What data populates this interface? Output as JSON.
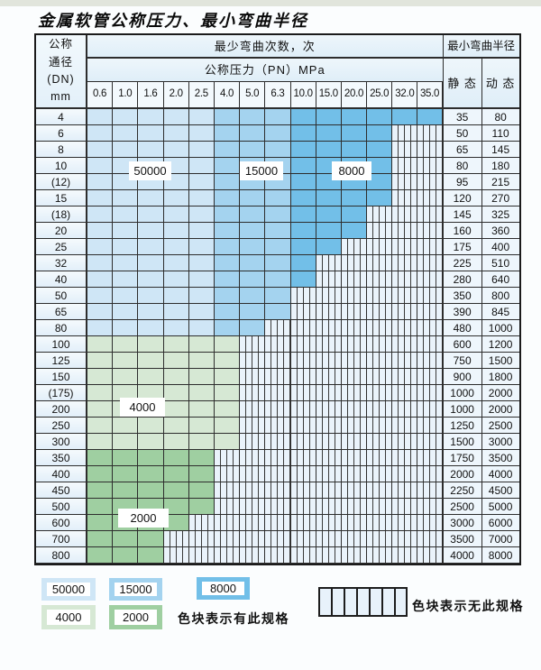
{
  "title": "金属软管公称压力、最小弯曲半径",
  "table": {
    "corner_lines": [
      "公称",
      "通径",
      "(DN)",
      "mm"
    ],
    "bend_cycles_header": "最少弯曲次数，次",
    "pressure_header": "公称压力（PN）MPa",
    "pressure_values": [
      "0.6",
      "1.0",
      "1.6",
      "2.0",
      "2.5",
      "4.0",
      "5.0",
      "6.3",
      "10.0",
      "15.0",
      "20.0",
      "25.0",
      "32.0",
      "35.0"
    ],
    "radius_header": "最小弯曲半径",
    "static_label": "静 态",
    "dynamic_label": "动 态",
    "rows": [
      {
        "dn": "4",
        "colored_cols": 14,
        "palette": "blue",
        "static": "35",
        "dynamic": "80"
      },
      {
        "dn": "6",
        "colored_cols": 12,
        "palette": "blue",
        "static": "50",
        "dynamic": "110"
      },
      {
        "dn": "8",
        "colored_cols": 12,
        "palette": "blue",
        "static": "65",
        "dynamic": "145"
      },
      {
        "dn": "10",
        "colored_cols": 12,
        "palette": "blue",
        "static": "80",
        "dynamic": "180"
      },
      {
        "dn": "(12)",
        "colored_cols": 12,
        "palette": "blue",
        "static": "95",
        "dynamic": "215"
      },
      {
        "dn": "15",
        "colored_cols": 12,
        "palette": "blue",
        "static": "120",
        "dynamic": "270"
      },
      {
        "dn": "(18)",
        "colored_cols": 11,
        "palette": "blue",
        "static": "145",
        "dynamic": "325"
      },
      {
        "dn": "20",
        "colored_cols": 11,
        "palette": "blue",
        "static": "160",
        "dynamic": "360"
      },
      {
        "dn": "25",
        "colored_cols": 10,
        "palette": "blue",
        "static": "175",
        "dynamic": "400"
      },
      {
        "dn": "32",
        "colored_cols": 9,
        "palette": "blue",
        "static": "225",
        "dynamic": "510"
      },
      {
        "dn": "40",
        "colored_cols": 9,
        "palette": "blue",
        "static": "280",
        "dynamic": "640"
      },
      {
        "dn": "50",
        "colored_cols": 8,
        "palette": "blue",
        "static": "350",
        "dynamic": "800"
      },
      {
        "dn": "65",
        "colored_cols": 8,
        "palette": "blue",
        "static": "390",
        "dynamic": "845"
      },
      {
        "dn": "80",
        "colored_cols": 7,
        "palette": "blue",
        "static": "480",
        "dynamic": "1000"
      },
      {
        "dn": "100",
        "colored_cols": 6,
        "palette": "green-4000",
        "static": "600",
        "dynamic": "1200"
      },
      {
        "dn": "125",
        "colored_cols": 6,
        "palette": "green-4000",
        "static": "750",
        "dynamic": "1500"
      },
      {
        "dn": "150",
        "colored_cols": 6,
        "palette": "green-4000",
        "static": "900",
        "dynamic": "1800"
      },
      {
        "dn": "(175)",
        "colored_cols": 6,
        "palette": "green-4000",
        "static": "1000",
        "dynamic": "2000"
      },
      {
        "dn": "200",
        "colored_cols": 6,
        "palette": "green-4000",
        "static": "1000",
        "dynamic": "2000"
      },
      {
        "dn": "250",
        "colored_cols": 6,
        "palette": "green-4000",
        "static": "1250",
        "dynamic": "2500"
      },
      {
        "dn": "300",
        "colored_cols": 6,
        "palette": "green-4000",
        "static": "1500",
        "dynamic": "3000"
      },
      {
        "dn": "350",
        "colored_cols": 5,
        "palette": "green-2000",
        "static": "1750",
        "dynamic": "3500"
      },
      {
        "dn": "400",
        "colored_cols": 5,
        "palette": "green-2000",
        "static": "2000",
        "dynamic": "4000"
      },
      {
        "dn": "450",
        "colored_cols": 5,
        "palette": "green-2000",
        "static": "2250",
        "dynamic": "4500"
      },
      {
        "dn": "500",
        "colored_cols": 5,
        "palette": "green-2000",
        "static": "2500",
        "dynamic": "5000"
      },
      {
        "dn": "600",
        "colored_cols": 4,
        "palette": "green-2000",
        "static": "3000",
        "dynamic": "6000"
      },
      {
        "dn": "700",
        "colored_cols": 3,
        "palette": "green-2000",
        "static": "3500",
        "dynamic": "7000"
      },
      {
        "dn": "800",
        "colored_cols": 3,
        "palette": "green-2000",
        "static": "4000",
        "dynamic": "8000"
      }
    ],
    "zone_labels": [
      "50000",
      "15000",
      "8000",
      "4000",
      "2000"
    ]
  },
  "legend": {
    "blocks": [
      {
        "label": "50000",
        "color": "#cfe6f6"
      },
      {
        "label": "15000",
        "color": "#a4d3ef"
      },
      {
        "label": "8000",
        "color": "#72bfe8"
      },
      {
        "label": "4000",
        "color": "#d6e8d4"
      },
      {
        "label": "2000",
        "color": "#9fcfa1"
      }
    ],
    "has_spec_text": "色块表示有此规格",
    "no_spec_text": "色块表示无此规格"
  },
  "colors": {
    "zone_50000": "#cfe6f6",
    "zone_15000": "#a4d3ef",
    "zone_8000": "#72bfe8",
    "zone_4000": "#d6e8d4",
    "zone_2000": "#9fcfa1",
    "hatch_bg": "#eaf3fb",
    "grid_line": "#2d2d2d"
  }
}
